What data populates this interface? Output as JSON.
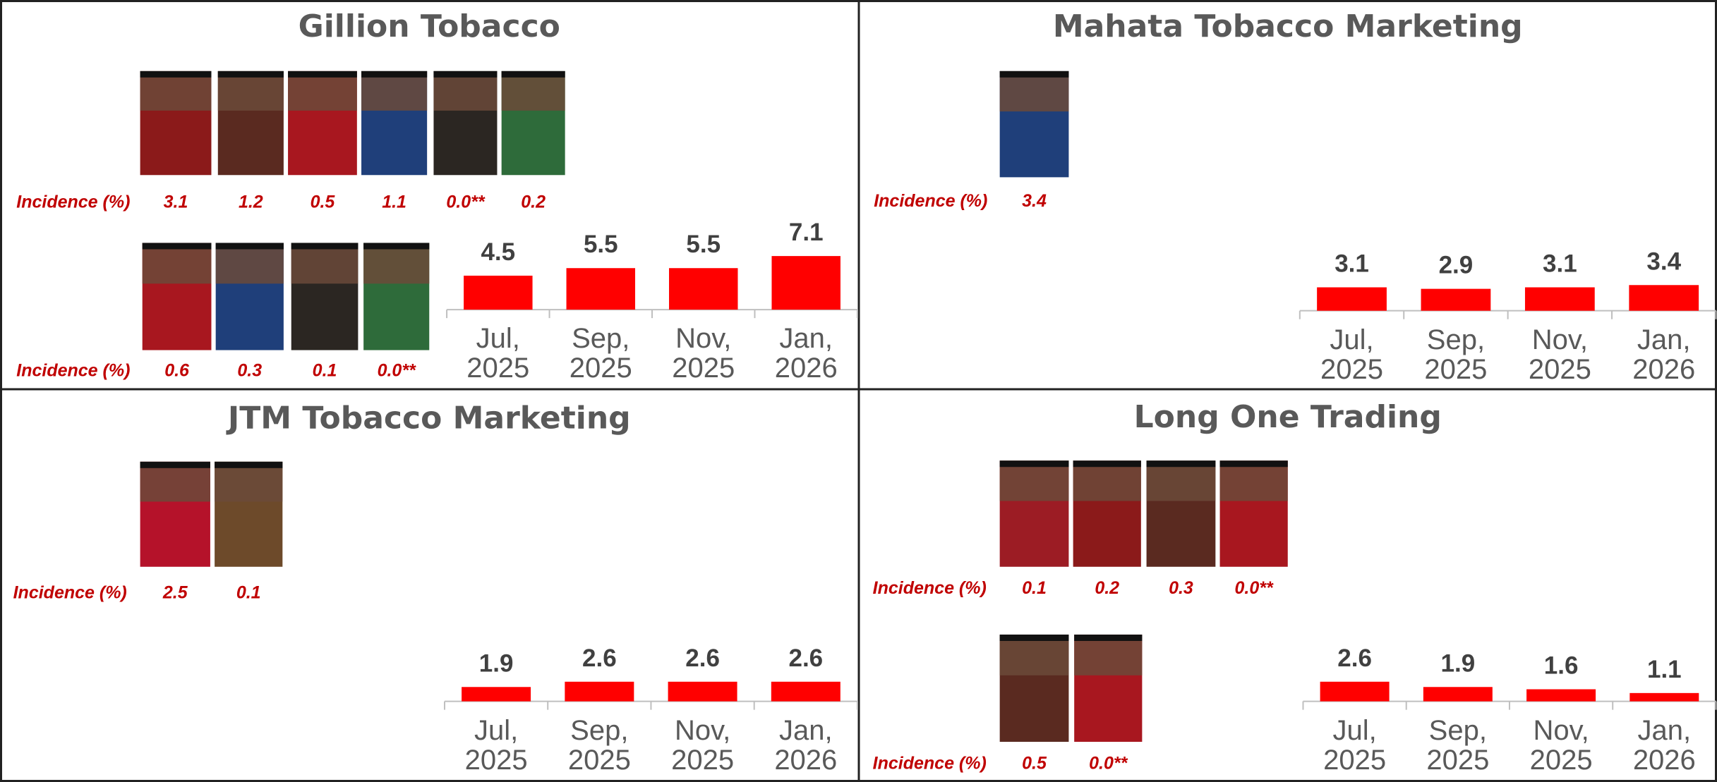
{
  "chart_data": [
    {
      "type": "bar",
      "title": "Gillion Tobacco",
      "categories": [
        "Jul, 2025",
        "Sep, 2025",
        "Nov, 2025",
        "Jan, 2026"
      ],
      "values": [
        4.5,
        5.5,
        5.5,
        7.1
      ],
      "color": "#ff0000",
      "ylim": [
        0,
        10
      ],
      "incidence_rows": [
        {
          "label": "Incidence (%)",
          "values": [
            3.1,
            1.2,
            0.5,
            1.1,
            0.0,
            0.2
          ],
          "value_labels": [
            "3.1",
            "1.2",
            "0.5",
            "1.1",
            "0.0**",
            "0.2"
          ]
        },
        {
          "label": "Incidence (%)",
          "values": [
            0.6,
            0.3,
            0.1,
            0.0
          ],
          "value_labels": [
            "0.6",
            "0.3",
            "0.1",
            "0.0**"
          ]
        }
      ]
    },
    {
      "type": "bar",
      "title": "Mahata Tobacco Marketing",
      "categories": [
        "Jul, 2025",
        "Sep, 2025",
        "Nov, 2025",
        "Jan, 2026"
      ],
      "values": [
        3.1,
        2.9,
        3.1,
        3.4
      ],
      "color": "#ff0000",
      "ylim": [
        0,
        10
      ],
      "incidence_rows": [
        {
          "label": "Incidence (%)",
          "values": [
            3.4
          ],
          "value_labels": [
            "3.4"
          ]
        }
      ]
    },
    {
      "type": "bar",
      "title": "JTM Tobacco Marketing",
      "categories": [
        "Jul, 2025",
        "Sep, 2025",
        "Nov, 2025",
        "Jan, 2026"
      ],
      "values": [
        1.9,
        2.6,
        2.6,
        2.6
      ],
      "color": "#ff0000",
      "ylim": [
        0,
        10
      ],
      "incidence_rows": [
        {
          "label": "Incidence (%)",
          "values": [
            2.5,
            0.1
          ],
          "value_labels": [
            "2.5",
            "0.1"
          ]
        }
      ]
    },
    {
      "type": "bar",
      "title": "Long One Trading",
      "categories": [
        "Jul, 2025",
        "Sep, 2025",
        "Nov, 2025",
        "Jan, 2026"
      ],
      "values": [
        2.6,
        1.9,
        1.6,
        1.1
      ],
      "color": "#ff0000",
      "ylim": [
        0,
        10
      ],
      "incidence_rows": [
        {
          "label": "Incidence (%)",
          "values": [
            0.1,
            0.2,
            0.3,
            0.0
          ],
          "value_labels": [
            "0.1",
            "0.2",
            "0.3",
            "0.0**"
          ]
        },
        {
          "label": "Incidence (%)",
          "values": [
            0.5,
            0.0
          ],
          "value_labels": [
            "0.5",
            "0.0**"
          ]
        }
      ]
    }
  ]
}
